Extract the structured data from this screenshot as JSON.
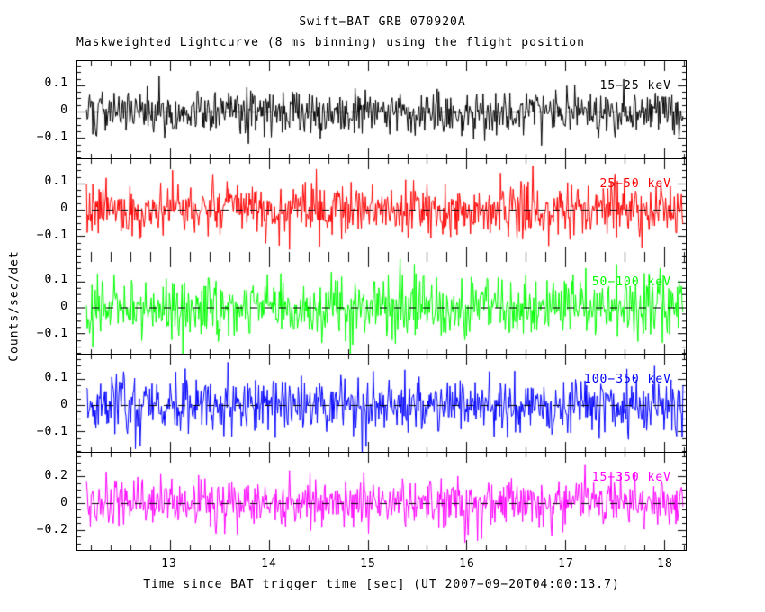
{
  "title": "Swift−BAT GRB 070920A",
  "subtitle": "Maskweighted Lightcurve (8 ms binning) using the flight position",
  "xlabel": "Time since BAT trigger time [sec] (UT 2007−09−20T04:00:13.7)",
  "ylabel": "Counts/sec/det",
  "chart_data": {
    "type": "line",
    "description": "Five stacked panels of mask-weighted noise-like lightcurves around zero counts/sec/det; no visible burst structure. Values are zero-mean gaussian noise per 8 ms bin.",
    "x_range": [
      12.06,
      18.22
    ],
    "x_ticks": [
      13,
      14,
      15,
      16,
      17,
      18
    ],
    "x_tick_labels": [
      "13",
      "14",
      "15",
      "16",
      "17",
      "18"
    ],
    "x_minor_step": 0.2,
    "bin_seconds": 0.008,
    "t_start": 12.152,
    "n_bins": 756,
    "grid": false,
    "zero_line": {
      "style": "dashed",
      "color": "#000000",
      "dash": [
        8,
        8
      ]
    },
    "panels": [
      {
        "label": "15−25 keV",
        "color": "#000000",
        "ylim": [
          -0.178,
          0.192
        ],
        "yticks": [
          0.1,
          0,
          -0.1
        ],
        "ytick_labels": [
          "0.1",
          "0",
          "−0.1"
        ],
        "y_minor_step": 0.025,
        "noise_sigma": 0.042,
        "seed": 101
      },
      {
        "label": "25−50 keV",
        "color": "#ff0000",
        "ylim": [
          -0.178,
          0.192
        ],
        "yticks": [
          0.1,
          0,
          -0.1
        ],
        "ytick_labels": [
          "0.1",
          "0",
          "−0.1"
        ],
        "y_minor_step": 0.025,
        "noise_sigma": 0.05,
        "seed": 202
      },
      {
        "label": "50−100 keV",
        "color": "#00ff00",
        "ylim": [
          -0.178,
          0.192
        ],
        "yticks": [
          0.1,
          0,
          -0.1
        ],
        "ytick_labels": [
          "0.1",
          "0",
          "−0.1"
        ],
        "y_minor_step": 0.025,
        "noise_sigma": 0.055,
        "seed": 303
      },
      {
        "label": "100−350 keV",
        "color": "#0000ff",
        "ylim": [
          -0.178,
          0.192
        ],
        "yticks": [
          0.1,
          0,
          -0.1
        ],
        "ytick_labels": [
          "0.1",
          "0",
          "−0.1"
        ],
        "y_minor_step": 0.025,
        "noise_sigma": 0.055,
        "seed": 404
      },
      {
        "label": "15−350 keV",
        "color": "#ff00ff",
        "ylim": [
          -0.35,
          0.377
        ],
        "yticks": [
          0.2,
          0,
          -0.2
        ],
        "ytick_labels": [
          "0.2",
          "0",
          "−0.2"
        ],
        "y_minor_step": 0.05,
        "noise_sigma": 0.095,
        "seed": 505
      }
    ]
  }
}
